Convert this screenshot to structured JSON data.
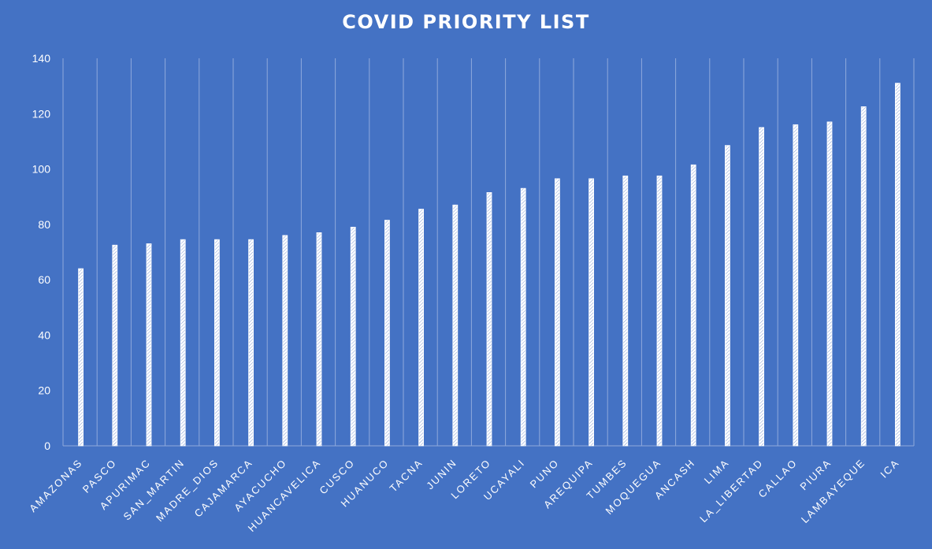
{
  "chart_data": {
    "type": "bar",
    "title": "COVID PRIORITY LIST",
    "xlabel": "",
    "ylabel": "",
    "ylim": [
      0,
      140
    ],
    "yticks": [
      0,
      20,
      40,
      60,
      80,
      100,
      120,
      140
    ],
    "grid": "vertical",
    "legend": "none",
    "categories": [
      "AMAZONAS",
      "PASCO",
      "APURIMAC",
      "SAN_MARTIN",
      "MADRE_DIOS",
      "CAJAMARCA",
      "AYACUCHO",
      "HUANCAVELICA",
      "CUSCO",
      "HUANUCO",
      "TACNA",
      "JUNIN",
      "LORETO",
      "UCAYALI",
      "PUNO",
      "AREQUIPA",
      "TUMBES",
      "MOQUEGUA",
      "ANCASH",
      "LIMA",
      "LA_LIBERTAD",
      "CALLAO",
      "PIURA",
      "LAMBAYEQUE",
      "ICA"
    ],
    "values": [
      64,
      72.5,
      73,
      74.5,
      74.5,
      74.5,
      76,
      77,
      79,
      81.5,
      85.5,
      87,
      91.5,
      93,
      96.5,
      96.5,
      97.5,
      97.5,
      101.5,
      108.5,
      115,
      116,
      117,
      122.5,
      131
    ],
    "colors": {
      "background": "#4472c4",
      "bar": "#ffffff",
      "grid": "#8fa9dc",
      "text": "#ffffff"
    }
  }
}
